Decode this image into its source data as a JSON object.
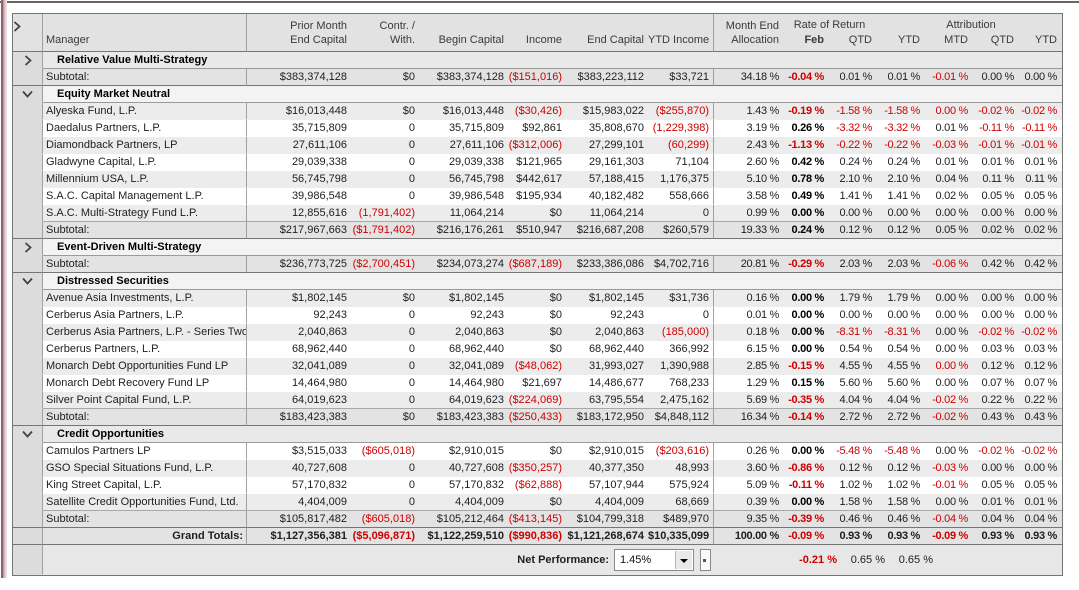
{
  "colors": {
    "negative_red": "#cf0000",
    "window_accent": "#96616c",
    "grid_border": "#757575"
  },
  "table_header": {
    "manager": "Manager",
    "cols": [
      {
        "top": "Prior Month",
        "bottom": "End Capital"
      },
      {
        "top": "Contr. /",
        "bottom": "With."
      },
      {
        "top": "",
        "bottom": "Begin Capital"
      },
      {
        "top": "",
        "bottom": "Income"
      },
      {
        "top": "",
        "bottom": "End Capital"
      },
      {
        "top": "",
        "bottom": "YTD Income"
      },
      {
        "top": "Month End",
        "bottom": "Allocation"
      },
      {
        "top": "",
        "bottom": "Feb"
      },
      {
        "top": "",
        "bottom": "QTD"
      },
      {
        "top": "",
        "bottom": "YTD"
      },
      {
        "top": "",
        "bottom": "MTD"
      },
      {
        "top": "",
        "bottom": "QTD"
      },
      {
        "top": "",
        "bottom": "YTD"
      }
    ],
    "group_labels": {
      "rate_of_return": "Rate of Return",
      "attribution": "Attribution"
    }
  },
  "sections": [
    {
      "name": "Relative Value Multi-Strategy",
      "expanded": false,
      "header_shade": "grey",
      "funds": [],
      "subtotal": {
        "label": "Subtotal:",
        "cells": [
          "$383,374,128",
          "$0",
          "$383,374,128",
          "($151,016)",
          "$383,223,112",
          "$33,721",
          "34.18 %",
          "-0.04 %",
          "0.01 %",
          "0.01 %",
          "-0.01 %",
          "0.00 %",
          "0.00 %"
        ]
      }
    },
    {
      "name": "Equity Market Neutral",
      "expanded": true,
      "header_shade": "light",
      "funds": [
        {
          "name": "Alyeska Fund, L.P.",
          "shade": "g",
          "red_extra": [
            10
          ],
          "cells": [
            "$16,013,448",
            "$0",
            "$16,013,448",
            "($30,426)",
            "$15,983,022",
            "($255,870)",
            "1.43 %",
            "-0.19 %",
            "-1.58 %",
            "-1.58 %",
            "0.00 %",
            "-0.02 %",
            "-0.02 %"
          ]
        },
        {
          "name": "Daedalus Partners, L.P.",
          "shade": "w",
          "red_extra": [],
          "cells": [
            "35,715,809",
            "0",
            "35,715,809",
            "$92,861",
            "35,808,670",
            "(1,229,398)",
            "3.19 %",
            "0.26 %",
            "-3.32 %",
            "-3.32 %",
            "0.01 %",
            "-0.11 %",
            "-0.11 %"
          ]
        },
        {
          "name": "Diamondback Partners, LP",
          "shade": "g",
          "red_extra": [],
          "cells": [
            "27,611,106",
            "0",
            "27,611,106",
            "($312,006)",
            "27,299,101",
            "(60,299)",
            "2.43 %",
            "-1.13 %",
            "-0.22 %",
            "-0.22 %",
            "-0.03 %",
            "-0.01 %",
            "-0.01 %"
          ]
        },
        {
          "name": "Gladwyne Capital, L.P.",
          "shade": "w",
          "red_extra": [],
          "cells": [
            "29,039,338",
            "0",
            "29,039,338",
            "$121,965",
            "29,161,303",
            "71,104",
            "2.60 %",
            "0.42 %",
            "0.24 %",
            "0.24 %",
            "0.01 %",
            "0.01 %",
            "0.01 %"
          ]
        },
        {
          "name": "Millennium USA, L.P.",
          "shade": "g",
          "red_extra": [],
          "cells": [
            "56,745,798",
            "0",
            "56,745,798",
            "$442,617",
            "57,188,415",
            "1,176,375",
            "5.10 %",
            "0.78 %",
            "2.10 %",
            "2.10 %",
            "0.04 %",
            "0.11 %",
            "0.11 %"
          ]
        },
        {
          "name": "S.A.C. Capital Management L.P.",
          "shade": "w",
          "red_extra": [],
          "cells": [
            "39,986,548",
            "0",
            "39,986,548",
            "$195,934",
            "40,182,482",
            "558,666",
            "3.58 %",
            "0.49 %",
            "1.41 %",
            "1.41 %",
            "0.02 %",
            "0.05 %",
            "0.05 %"
          ]
        },
        {
          "name": "S.A.C. Multi-Strategy Fund L.P.",
          "shade": "g",
          "red_extra": [],
          "cells": [
            "12,855,616",
            "(1,791,402)",
            "11,064,214",
            "$0",
            "11,064,214",
            "0",
            "0.99 %",
            "0.00 %",
            "0.00 %",
            "0.00 %",
            "0.00 %",
            "0.00 %",
            "0.00 %"
          ]
        }
      ],
      "subtotal": {
        "label": "Subtotal:",
        "cells": [
          "$217,967,663",
          "($1,791,402)",
          "$216,176,261",
          "$510,947",
          "$216,687,208",
          "$260,579",
          "19.33 %",
          "0.24 %",
          "0.12 %",
          "0.12 %",
          "0.05 %",
          "0.02 %",
          "0.02 %"
        ]
      }
    },
    {
      "name": "Event-Driven Multi-Strategy",
      "expanded": false,
      "header_shade": "light",
      "funds": [],
      "subtotal": {
        "label": "Subtotal:",
        "cells": [
          "$236,773,725",
          "($2,700,451)",
          "$234,073,274",
          "($687,189)",
          "$233,386,086",
          "$4,702,716",
          "20.81 %",
          "-0.29 %",
          "2.03 %",
          "2.03 %",
          "-0.06 %",
          "0.42 %",
          "0.42 %"
        ]
      }
    },
    {
      "name": "Distressed Securities",
      "expanded": true,
      "header_shade": "light",
      "funds": [
        {
          "name": "Avenue Asia Investments, L.P.",
          "shade": "g",
          "red_extra": [],
          "cells": [
            "$1,802,145",
            "$0",
            "$1,802,145",
            "$0",
            "$1,802,145",
            "$31,736",
            "0.16 %",
            "0.00 %",
            "1.79 %",
            "1.79 %",
            "0.00 %",
            "0.00 %",
            "0.00 %"
          ]
        },
        {
          "name": "Cerberus Asia Partners, L.P.",
          "shade": "w",
          "red_extra": [],
          "cells": [
            "92,243",
            "0",
            "92,243",
            "$0",
            "92,243",
            "0",
            "0.01 %",
            "0.00 %",
            "0.00 %",
            "0.00 %",
            "0.00 %",
            "0.00 %",
            "0.00 %"
          ]
        },
        {
          "name": "Cerberus Asia Partners, L.P. - Series Two",
          "shade": "g",
          "red_extra": [],
          "cells": [
            "2,040,863",
            "0",
            "2,040,863",
            "$0",
            "2,040,863",
            "(185,000)",
            "0.18 %",
            "0.00 %",
            "-8.31 %",
            "-8.31 %",
            "0.00 %",
            "-0.02 %",
            "-0.02 %"
          ]
        },
        {
          "name": "Cerberus Partners, L.P.",
          "shade": "w",
          "red_extra": [],
          "cells": [
            "68,962,440",
            "0",
            "68,962,440",
            "$0",
            "68,962,440",
            "366,992",
            "6.15 %",
            "0.00 %",
            "0.54 %",
            "0.54 %",
            "0.00 %",
            "0.03 %",
            "0.03 %"
          ]
        },
        {
          "name": "Monarch Debt Opportunities Fund LP",
          "shade": "g",
          "red_extra": [
            10
          ],
          "cells": [
            "32,041,089",
            "0",
            "32,041,089",
            "($48,062)",
            "31,993,027",
            "1,390,988",
            "2.85 %",
            "-0.15 %",
            "4.55 %",
            "4.55 %",
            "0.00 %",
            "0.12 %",
            "0.12 %"
          ]
        },
        {
          "name": "Monarch Debt Recovery Fund LP",
          "shade": "w",
          "red_extra": [],
          "cells": [
            "14,464,980",
            "0",
            "14,464,980",
            "$21,697",
            "14,486,677",
            "768,233",
            "1.29 %",
            "0.15 %",
            "5.60 %",
            "5.60 %",
            "0.00 %",
            "0.07 %",
            "0.07 %"
          ]
        },
        {
          "name": "Silver Point Capital Fund, L.P.",
          "shade": "g",
          "red_extra": [],
          "cells": [
            "64,019,623",
            "0",
            "64,019,623",
            "($224,069)",
            "63,795,554",
            "2,475,162",
            "5.69 %",
            "-0.35 %",
            "4.04 %",
            "4.04 %",
            "-0.02 %",
            "0.22 %",
            "0.22 %"
          ]
        }
      ],
      "subtotal": {
        "label": "Subtotal:",
        "cells": [
          "$183,423,383",
          "$0",
          "$183,423,383",
          "($250,433)",
          "$183,172,950",
          "$4,848,112",
          "16.34 %",
          "-0.14 %",
          "2.72 %",
          "2.72 %",
          "-0.02 %",
          "0.43 %",
          "0.43 %"
        ]
      }
    },
    {
      "name": "Credit Opportunities",
      "expanded": true,
      "header_shade": "grey",
      "funds": [
        {
          "name": "Camulos Partners LP",
          "shade": "w",
          "red_extra": [],
          "cells": [
            "$3,515,033",
            "($605,018)",
            "$2,910,015",
            "$0",
            "$2,910,015",
            "($203,616)",
            "0.26 %",
            "0.00 %",
            "-5.48 %",
            "-5.48 %",
            "0.00 %",
            "-0.02 %",
            "-0.02 %"
          ]
        },
        {
          "name": "GSO Special Situations Fund, L.P.",
          "shade": "g",
          "red_extra": [],
          "cells": [
            "40,727,608",
            "0",
            "40,727,608",
            "($350,257)",
            "40,377,350",
            "48,993",
            "3.60 %",
            "-0.86 %",
            "0.12 %",
            "0.12 %",
            "-0.03 %",
            "0.00 %",
            "0.00 %"
          ]
        },
        {
          "name": "King Street Capital, L.P.",
          "shade": "w",
          "red_extra": [],
          "cells": [
            "57,170,832",
            "0",
            "57,170,832",
            "($62,888)",
            "57,107,944",
            "575,924",
            "5.09 %",
            "-0.11 %",
            "1.02 %",
            "1.02 %",
            "-0.01 %",
            "0.05 %",
            "0.05 %"
          ]
        },
        {
          "name": "Satellite Credit Opportunities Fund, Ltd.",
          "shade": "g",
          "red_extra": [],
          "cells": [
            "4,404,009",
            "0",
            "4,404,009",
            "$0",
            "4,404,009",
            "68,669",
            "0.39 %",
            "0.00 %",
            "1.58 %",
            "1.58 %",
            "0.00 %",
            "0.01 %",
            "0.01 %"
          ]
        }
      ],
      "subtotal": {
        "label": "Subtotal:",
        "cells": [
          "$105,817,482",
          "($605,018)",
          "$105,212,464",
          "($413,145)",
          "$104,799,318",
          "$489,970",
          "9.35 %",
          "-0.39 %",
          "0.46 %",
          "0.46 %",
          "-0.04 %",
          "0.04 %",
          "0.04 %"
        ]
      }
    }
  ],
  "grand_totals": {
    "label": "Grand Totals:",
    "cells": [
      "$1,127,356,381",
      "($5,096,871)",
      "$1,122,259,510",
      "($990,836)",
      "$1,121,268,674",
      "$10,335,099",
      "100.00 %",
      "-0.09 %",
      "0.93 %",
      "0.93 %",
      "-0.09 %",
      "0.93 %",
      "0.93 %"
    ]
  },
  "net_performance": {
    "label": "Net Performance:",
    "dropdown_value": "1.45%",
    "feb": "-0.21 %",
    "qtd": "0.65 %",
    "ytd": "0.65 %"
  }
}
